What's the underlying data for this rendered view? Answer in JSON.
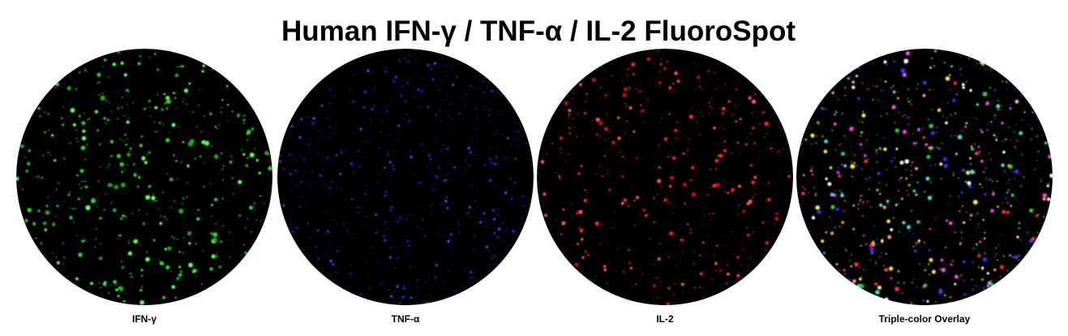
{
  "title": "Human IFN-γ / TNF-α / IL-2 FluoroSpot",
  "wells": [
    {
      "label": "IFN-γ"
    },
    {
      "label": "TNF-α"
    },
    {
      "label": "IL-2"
    },
    {
      "label": "Triple-color Overlay"
    }
  ]
}
